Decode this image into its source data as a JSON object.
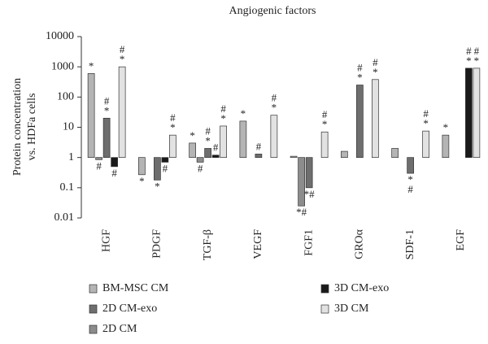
{
  "chart_data": {
    "type": "bar",
    "title": "Angiogenic factors",
    "ylabel": [
      "Protein concentration",
      "vs. HDFa cells"
    ],
    "log_scale": true,
    "categories": [
      "HGF",
      "PDGF",
      "TGF-β",
      "VEGF",
      "FGF1",
      "GROα",
      "SDF-1",
      "EGF"
    ],
    "ylim": [
      0.01,
      10000
    ],
    "yticks": [
      0.01,
      0.1,
      1,
      10,
      100,
      1000,
      10000
    ],
    "series": [
      {
        "name": "BM-MSC CM",
        "color": "#b4b4b4",
        "values": [
          600,
          0.27,
          3,
          16,
          1.1,
          1.6,
          2,
          5.5
        ]
      },
      {
        "name": "2D CM",
        "color": "#8c8c8c",
        "values": [
          0.85,
          null,
          0.7,
          null,
          0.025,
          null,
          null,
          null
        ]
      },
      {
        "name": "2D CM-exo",
        "color": "#6e6e6e",
        "values": [
          20,
          0.18,
          2,
          1.3,
          0.1,
          250,
          0.3,
          null
        ]
      },
      {
        "name": "3D CM-exo",
        "color": "#1a1a1a",
        "values": [
          0.5,
          0.7,
          1.2,
          null,
          null,
          null,
          null,
          900
        ]
      },
      {
        "name": "3D CM",
        "color": "#e2e2e2",
        "values": [
          1000,
          5.5,
          11,
          25,
          7,
          380,
          7.5,
          900
        ]
      }
    ],
    "annotations": [
      {
        "series": 0,
        "index": 0,
        "lines": [
          "*"
        ]
      },
      {
        "series": 1,
        "index": 0,
        "lines": [
          "#"
        ]
      },
      {
        "series": 2,
        "index": 0,
        "lines": [
          "#",
          "*"
        ]
      },
      {
        "series": 3,
        "index": 0,
        "lines": [
          "#"
        ]
      },
      {
        "series": 4,
        "index": 0,
        "lines": [
          "#",
          "*"
        ]
      },
      {
        "series": 0,
        "index": 1,
        "lines": [
          "*"
        ]
      },
      {
        "series": 2,
        "index": 1,
        "lines": [
          "*"
        ]
      },
      {
        "series": 3,
        "index": 1,
        "lines": [
          "#"
        ]
      },
      {
        "series": 4,
        "index": 1,
        "lines": [
          "#",
          "*"
        ]
      },
      {
        "series": 0,
        "index": 2,
        "lines": [
          "*"
        ]
      },
      {
        "series": 1,
        "index": 2,
        "lines": [
          "#"
        ]
      },
      {
        "series": 2,
        "index": 2,
        "lines": [
          "#",
          "*"
        ]
      },
      {
        "series": 3,
        "index": 2,
        "lines": [
          "#"
        ]
      },
      {
        "series": 4,
        "index": 2,
        "lines": [
          "#",
          "*"
        ]
      },
      {
        "series": 0,
        "index": 3,
        "lines": [
          "*"
        ]
      },
      {
        "series": 2,
        "index": 3,
        "lines": [
          "#"
        ]
      },
      {
        "series": 4,
        "index": 3,
        "lines": [
          "#",
          "*"
        ]
      },
      {
        "series": 1,
        "index": 4,
        "lines": [
          "*#"
        ]
      },
      {
        "series": 2,
        "index": 4,
        "lines": [
          "*#"
        ]
      },
      {
        "series": 4,
        "index": 4,
        "lines": [
          "#",
          "*"
        ]
      },
      {
        "series": 2,
        "index": 5,
        "lines": [
          "#",
          "*"
        ]
      },
      {
        "series": 4,
        "index": 5,
        "lines": [
          "#",
          "*"
        ]
      },
      {
        "series": 2,
        "index": 6,
        "lines": [
          "*",
          "#"
        ]
      },
      {
        "series": 4,
        "index": 6,
        "lines": [
          "#",
          "*"
        ]
      },
      {
        "series": 0,
        "index": 7,
        "lines": [
          "*"
        ]
      },
      {
        "series": 3,
        "index": 7,
        "lines": [
          "#",
          "*"
        ]
      },
      {
        "series": 4,
        "index": 7,
        "lines": [
          "#",
          "*"
        ]
      }
    ]
  }
}
